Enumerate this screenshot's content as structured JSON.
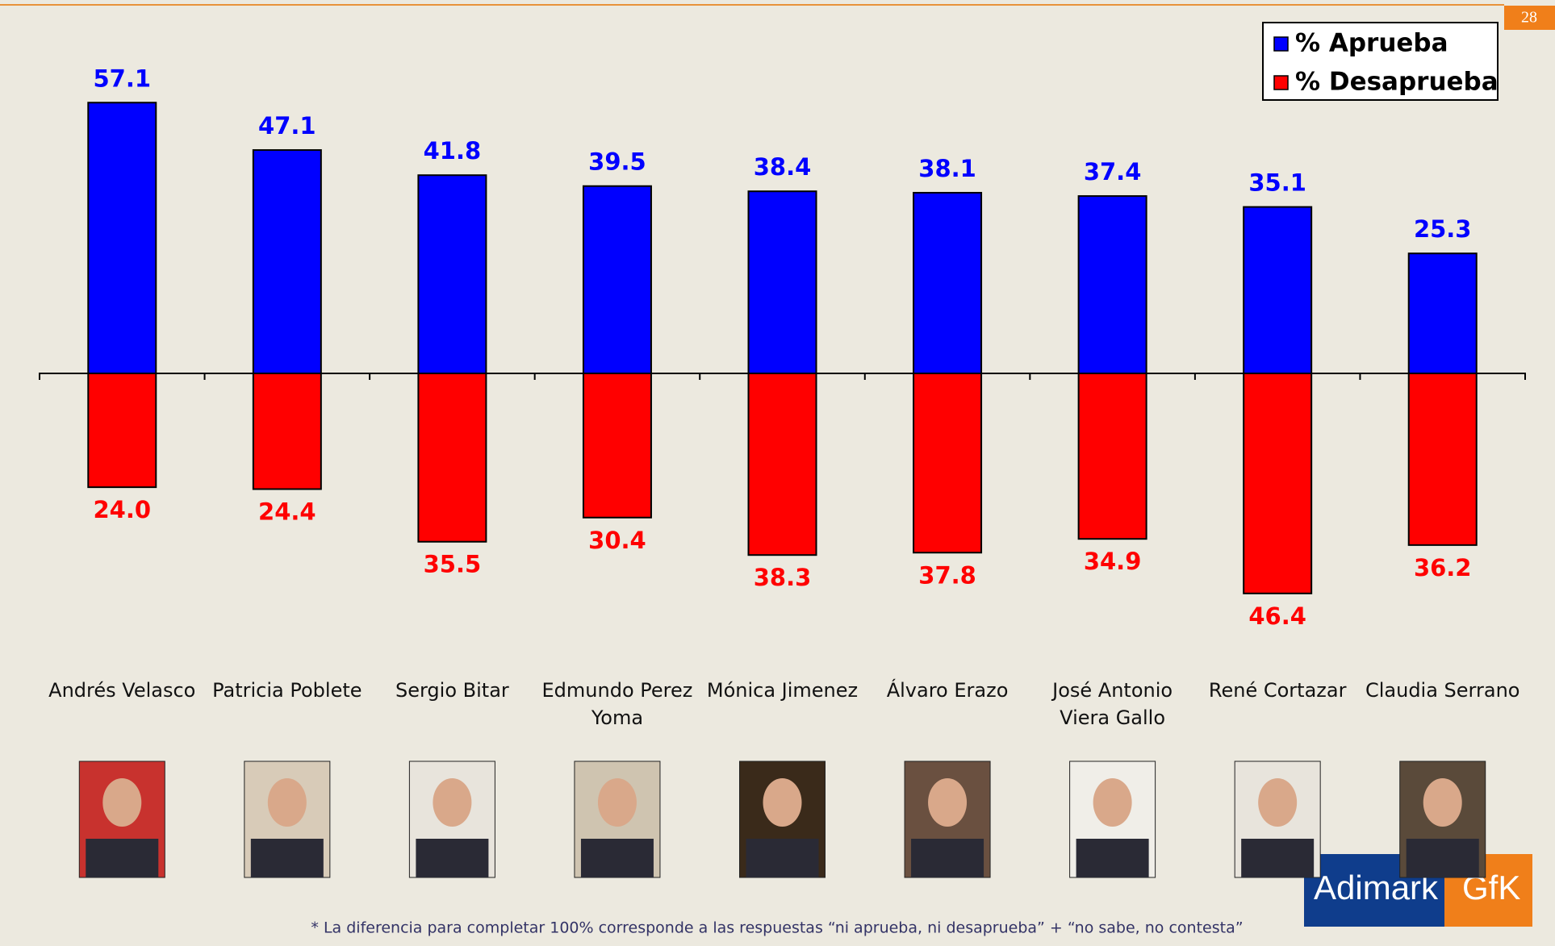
{
  "chart_data": {
    "type": "diverging-bar",
    "page_number": "28",
    "footnote": "* La diferencia para completar 100% corresponde a las respuestas “ni aprueba, ni desaprueba” + “no sabe, no contesta”",
    "logo": [
      "Adimark",
      "GfK"
    ],
    "categories": [
      [
        "Andrés Velasco"
      ],
      [
        "Patricia Poblete"
      ],
      [
        "Sergio Bitar"
      ],
      [
        "Edmundo Perez",
        "Yoma"
      ],
      [
        "Mónica Jimenez"
      ],
      [
        "Álvaro Erazo"
      ],
      [
        "José Antonio",
        "Viera Gallo"
      ],
      [
        "René Cortazar"
      ],
      [
        "Claudia Serrano"
      ]
    ],
    "series": [
      {
        "name": "% Aprueba",
        "color": "#0000ff",
        "direction": "up",
        "values": [
          57.1,
          47.1,
          41.8,
          39.5,
          38.4,
          38.1,
          37.4,
          35.1,
          25.3
        ],
        "value_labels": [
          "57.1",
          "47.1",
          "41.8",
          "39.5",
          "38.4",
          "38.1",
          "37.4",
          "35.1",
          "25.3"
        ]
      },
      {
        "name": "% Desaprueba",
        "color": "#ff0000",
        "direction": "down",
        "values": [
          24.0,
          24.4,
          35.5,
          30.4,
          38.3,
          37.8,
          34.9,
          46.4,
          36.2
        ],
        "value_labels": [
          "24.0",
          "24.4",
          "35.5",
          "30.4",
          "38.3",
          "37.8",
          "34.9",
          "46.4",
          "36.2"
        ]
      }
    ]
  }
}
